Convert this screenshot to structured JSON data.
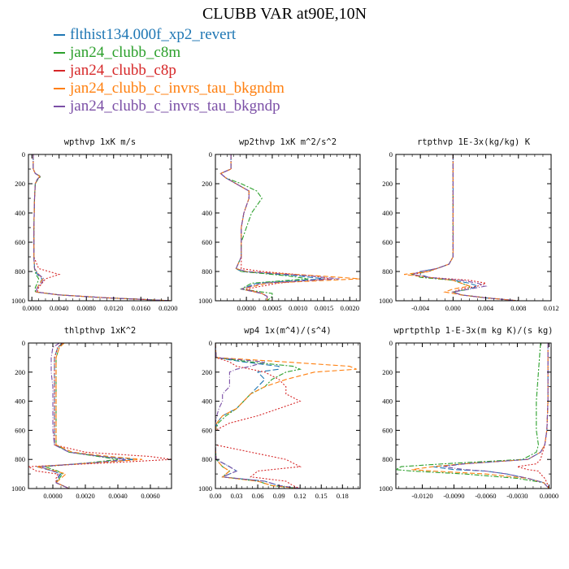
{
  "title": "CLUBB VAR at90E,10N",
  "legend": [
    {
      "name": "flthist134.000f_xp2_revert",
      "color": "#1f77b4"
    },
    {
      "name": "jan24_clubb_c8m",
      "color": "#2ca02c"
    },
    {
      "name": "jan24_clubb_c8p",
      "color": "#d62728"
    },
    {
      "name": "jan24_clubb_c_invrs_tau_bkgndm",
      "color": "#ff7f0e"
    },
    {
      "name": "jan24_clubb_c_invrs_tau_bkgndp",
      "color": "#7b4fa6"
    }
  ],
  "chart_data": [
    {
      "type": "line",
      "title": "wpthvp  1xK m/s",
      "xlim": [
        -0.0005,
        0.0205
      ],
      "ylim": [
        0,
        1000
      ],
      "y_inverted": true,
      "xticks": [
        "0.0000",
        "0.0040",
        "0.0080",
        "0.0120",
        "0.0160",
        "0.0200"
      ],
      "xtick_values": [
        0,
        0.004,
        0.008,
        0.012,
        0.016,
        0.02
      ],
      "yticks": [
        0,
        200,
        400,
        600,
        800,
        1000
      ],
      "y": [
        0,
        100,
        130,
        150,
        170,
        200,
        300,
        500,
        700,
        780,
        820,
        850,
        880,
        910,
        940,
        960,
        980,
        990,
        1000
      ],
      "series": [
        {
          "values": [
            0.0002,
            0.0002,
            0.0005,
            0.0012,
            0.0008,
            0.0005,
            0.0004,
            0.0003,
            0.0003,
            0.0004,
            0.0008,
            0.0015,
            0.0012,
            0.0008,
            0.0006,
            0.004,
            0.011,
            0.016,
            0.0205
          ]
        },
        {
          "values": [
            0.0002,
            0.0002,
            0.0005,
            0.0013,
            0.0009,
            0.0005,
            0.0004,
            0.0003,
            0.0003,
            0.0004,
            0.0006,
            0.001,
            0.0008,
            0.0005,
            0.0005,
            0.004,
            0.011,
            0.016,
            0.0205
          ]
        },
        {
          "values": [
            0.0002,
            0.0002,
            0.0005,
            0.0012,
            0.0008,
            0.0005,
            0.0004,
            0.0003,
            0.0003,
            0.001,
            0.004,
            0.002,
            0.0015,
            0.001,
            0.0008,
            0.004,
            0.011,
            0.016,
            0.0205
          ]
        },
        {
          "values": [
            0.0002,
            0.0002,
            0.0005,
            0.0012,
            0.0008,
            0.0005,
            0.0004,
            0.0003,
            0.0003,
            0.0004,
            0.001,
            0.0016,
            0.0012,
            0.0008,
            0.0006,
            0.004,
            0.011,
            0.016,
            0.0205
          ]
        },
        {
          "values": [
            0.0002,
            0.0002,
            0.0005,
            0.0012,
            0.0008,
            0.0005,
            0.0004,
            0.0003,
            0.0003,
            0.0004,
            0.001,
            0.0018,
            0.0014,
            0.0008,
            0.0006,
            0.004,
            0.011,
            0.016,
            0.0205
          ]
        }
      ]
    },
    {
      "type": "line",
      "title": "wp2thvp  1xK m^2/s^2",
      "xlim": [
        -0.0006,
        0.0022
      ],
      "ylim": [
        0,
        1000
      ],
      "y_inverted": true,
      "xticks": [
        "0.0000",
        "0.0005",
        "0.0010",
        "0.0015",
        "0.0020"
      ],
      "xtick_values": [
        0,
        0.0005,
        0.001,
        0.0015,
        0.002
      ],
      "yticks": [
        0,
        200,
        400,
        600,
        800,
        1000
      ],
      "y": [
        0,
        100,
        130,
        160,
        200,
        250,
        300,
        400,
        500,
        600,
        700,
        780,
        800,
        830,
        850,
        880,
        920,
        950,
        970,
        1000
      ],
      "series": [
        {
          "values": [
            -0.0003,
            -0.0003,
            -0.0005,
            -0.0004,
            -0.0002,
            5e-05,
            5e-05,
            -5e-05,
            -0.0001,
            -0.0001,
            -0.0001,
            -0.0002,
            -0.0001,
            0.001,
            0.0015,
            0.0002,
            -0.0001,
            0.0003,
            0.0004,
            0.0004
          ]
        },
        {
          "values": [
            -0.0003,
            -0.0003,
            -0.0005,
            -0.0004,
            -0.0001,
            0.0002,
            0.0003,
            0.0001,
            0.0,
            -0.0001,
            -0.0001,
            -0.0002,
            -0.0001,
            0.0008,
            0.0012,
            0.0001,
            -0.0001,
            0.0005,
            0.0005,
            0.0004
          ]
        },
        {
          "values": [
            -0.0003,
            -0.0003,
            -0.0005,
            -0.0004,
            -0.0002,
            5e-05,
            5e-05,
            -5e-05,
            -0.0001,
            -0.0001,
            -0.0001,
            -0.0001,
            0.0003,
            0.0013,
            0.0016,
            0.0006,
            0.0,
            0.0003,
            0.0004,
            0.0004
          ]
        },
        {
          "values": [
            -0.0003,
            -0.0003,
            -0.0005,
            -0.0004,
            -0.0002,
            5e-05,
            5e-05,
            -5e-05,
            -0.0001,
            -0.0001,
            -0.0001,
            -0.0002,
            0.0,
            0.0014,
            0.0022,
            0.0004,
            -0.0001,
            0.0003,
            0.0004,
            0.0004
          ]
        },
        {
          "values": [
            -0.0003,
            -0.0003,
            -0.0005,
            -0.0004,
            -0.0002,
            5e-05,
            5e-05,
            -5e-05,
            -0.0001,
            -0.0001,
            -0.0001,
            -0.0002,
            0.0,
            0.0012,
            0.0018,
            0.0003,
            -0.0001,
            0.0003,
            0.0004,
            0.0004
          ]
        }
      ]
    },
    {
      "type": "line",
      "title": "rtpthvp  1E-3x(kg/kg) K",
      "xlim": [
        -0.007,
        0.012
      ],
      "ylim": [
        0,
        1000
      ],
      "y_inverted": true,
      "xticks": [
        "-0.004",
        "0.000",
        "0.004",
        "0.008",
        "0.012"
      ],
      "xtick_values": [
        -0.004,
        0,
        0.004,
        0.008,
        0.012
      ],
      "yticks": [
        0,
        200,
        400,
        600,
        800,
        1000
      ],
      "y": [
        0,
        200,
        400,
        600,
        700,
        750,
        780,
        800,
        820,
        840,
        860,
        880,
        900,
        920,
        940,
        960,
        980,
        1000
      ],
      "series": [
        {
          "values": [
            0,
            0,
            0,
            0,
            0,
            -0.0005,
            -0.002,
            -0.004,
            -0.004,
            -0.003,
            0.0,
            0.002,
            0.003,
            0.002,
            0.0,
            0.001,
            0.004,
            0.008
          ]
        },
        {
          "values": [
            0,
            0,
            0,
            0,
            0,
            -0.0005,
            -0.002,
            -0.003,
            -0.005,
            -0.004,
            0.0,
            0.001,
            0.002,
            0.002,
            0.0,
            0.001,
            0.004,
            0.008
          ]
        },
        {
          "values": [
            0,
            0,
            0,
            0,
            0,
            -0.0005,
            -0.002,
            -0.003,
            -0.005,
            -0.003,
            0.002,
            0.004,
            0.003,
            0.001,
            0.0,
            0.001,
            0.004,
            0.008
          ]
        },
        {
          "values": [
            0,
            0,
            0,
            0,
            0,
            -0.0005,
            -0.002,
            -0.003,
            -0.006,
            -0.003,
            0.0,
            0.001,
            0.002,
            0.0,
            -0.001,
            0.001,
            0.004,
            0.008
          ]
        },
        {
          "values": [
            0,
            0,
            0,
            0,
            0,
            -0.0005,
            -0.002,
            -0.004,
            -0.005,
            -0.003,
            0.001,
            0.003,
            0.004,
            0.002,
            0.0,
            0.001,
            0.004,
            0.008
          ]
        }
      ]
    },
    {
      "type": "line",
      "title": "thlpthvp  1xK^2",
      "xlim": [
        -0.0015,
        0.0073
      ],
      "ylim": [
        0,
        1000
      ],
      "y_inverted": true,
      "xticks": [
        "0.0000",
        "0.0020",
        "0.0040",
        "0.0060"
      ],
      "xtick_values": [
        0,
        0.002,
        0.004,
        0.006
      ],
      "yticks": [
        0,
        200,
        400,
        600,
        800,
        1000
      ],
      "y": [
        0,
        30,
        100,
        200,
        300,
        400,
        500,
        600,
        700,
        750,
        780,
        800,
        820,
        850,
        880,
        900,
        930,
        960,
        1000
      ],
      "series": [
        {
          "values": [
            0.0006,
            0.0003,
            0.0001,
            0.0001,
            0.0001,
            0.0001,
            0.0001,
            0.0001,
            0.0001,
            0.001,
            0.003,
            0.005,
            0.003,
            -0.001,
            0.0,
            0.0005,
            0.0003,
            0.0002,
            0.001
          ]
        },
        {
          "values": [
            0.0007,
            0.0004,
            0.0002,
            0.0002,
            0.0002,
            0.0002,
            0.0002,
            0.0002,
            0.0002,
            0.001,
            0.0028,
            0.004,
            0.0025,
            -0.0005,
            0.0003,
            0.0006,
            0.0004,
            0.0002,
            0.001
          ]
        },
        {
          "values": [
            0.0006,
            0.0003,
            0.0001,
            0.0001,
            0.0001,
            0.0001,
            0.0001,
            0.0001,
            0.0001,
            0.002,
            0.006,
            0.0073,
            0.004,
            -0.0015,
            -0.001,
            0.0003,
            0.0002,
            0.0002,
            0.001
          ]
        },
        {
          "values": [
            0.0007,
            0.0004,
            0.0002,
            0.0002,
            0.0002,
            0.0002,
            0.0002,
            0.0002,
            0.0002,
            0.0012,
            0.0035,
            0.0055,
            0.003,
            -0.001,
            0.0002,
            0.0008,
            0.0005,
            0.0002,
            0.001
          ]
        },
        {
          "values": [
            0.0004,
            0.0,
            -0.0001,
            -0.0001,
            0.0,
            0.0,
            0.0,
            0.0,
            0.0001,
            0.001,
            0.003,
            0.0045,
            0.0028,
            -0.0008,
            0.0,
            0.0004,
            0.0003,
            0.0002,
            0.001
          ]
        }
      ]
    },
    {
      "type": "line",
      "title": "wp4  1x(m^4)/(s^4)",
      "xlim": [
        0.0,
        0.205
      ],
      "ylim": [
        0,
        1000
      ],
      "y_inverted": true,
      "xticks": [
        "0.00",
        "0.03",
        "0.06",
        "0.09",
        "0.12",
        "0.15",
        "0.18"
      ],
      "xtick_values": [
        0,
        0.03,
        0.06,
        0.09,
        0.12,
        0.15,
        0.18
      ],
      "yticks": [
        0,
        200,
        400,
        600,
        800,
        1000
      ],
      "y": [
        0,
        100,
        130,
        160,
        180,
        200,
        250,
        300,
        350,
        400,
        450,
        500,
        550,
        600,
        700,
        800,
        850,
        880,
        920,
        950,
        980,
        1000
      ],
      "series": [
        {
          "values": [
            0.0,
            0.001,
            0.04,
            0.09,
            0.09,
            0.06,
            0.07,
            0.06,
            0.05,
            0.04,
            0.03,
            0.01,
            0.002,
            0.0,
            0.0,
            0.001,
            0.02,
            0.03,
            0.01,
            0.07,
            0.09,
            0.12
          ]
        },
        {
          "values": [
            0.0,
            0.001,
            0.05,
            0.11,
            0.12,
            0.1,
            0.08,
            0.07,
            0.05,
            0.04,
            0.03,
            0.015,
            0.004,
            0.0,
            0.0,
            0.001,
            0.01,
            0.02,
            0.01,
            0.06,
            0.08,
            0.12
          ]
        },
        {
          "values": [
            0.0,
            0.001,
            0.02,
            0.03,
            0.05,
            0.07,
            0.09,
            0.1,
            0.1,
            0.12,
            0.09,
            0.06,
            0.02,
            0.0,
            0.0,
            0.1,
            0.12,
            0.06,
            0.05,
            0.1,
            0.11,
            0.12
          ]
        },
        {
          "values": [
            0.0,
            0.001,
            0.1,
            0.19,
            0.2,
            0.14,
            0.1,
            0.07,
            0.05,
            0.04,
            0.03,
            0.01,
            0.002,
            0.0,
            0.0,
            0.001,
            0.01,
            0.02,
            0.01,
            0.06,
            0.08,
            0.12
          ]
        },
        {
          "values": [
            0.0,
            0.001,
            0.07,
            0.05,
            0.03,
            0.02,
            0.02,
            0.02,
            0.01,
            0.01,
            0.005,
            0.002,
            0.0,
            0.0,
            0.0,
            0.001,
            0.02,
            0.03,
            0.01,
            0.07,
            0.09,
            0.12
          ]
        }
      ]
    },
    {
      "type": "line",
      "title": "wprtpthlp  1-E-3x(m kg K)/(s kg)",
      "xlim": [
        -0.0145,
        0.0002
      ],
      "ylim": [
        0,
        1000
      ],
      "y_inverted": true,
      "xticks": [
        "-0.0120",
        "-0.0090",
        "-0.0060",
        "-0.0030",
        "0.0000"
      ],
      "xtick_values": [
        -0.012,
        -0.009,
        -0.006,
        -0.003,
        0
      ],
      "yticks": [
        0,
        200,
        400,
        600,
        800,
        1000
      ],
      "y": [
        0,
        200,
        400,
        600,
        700,
        750,
        800,
        830,
        850,
        870,
        880,
        900,
        930,
        960,
        1000
      ],
      "series": [
        {
          "values": [
            -0.0001,
            -0.0001,
            -0.0001,
            -0.0002,
            -0.0004,
            -0.0008,
            -0.002,
            -0.008,
            -0.011,
            -0.009,
            -0.006,
            -0.004,
            -0.002,
            -0.0005,
            0.0
          ]
        },
        {
          "values": [
            -0.0008,
            -0.001,
            -0.0012,
            -0.0012,
            -0.001,
            -0.0012,
            -0.0025,
            -0.01,
            -0.014,
            -0.0145,
            -0.013,
            -0.008,
            -0.003,
            -0.0005,
            0.0
          ]
        },
        {
          "values": [
            -0.0001,
            -0.0001,
            -0.0001,
            -0.0002,
            -0.0004,
            -0.0006,
            -0.0008,
            -0.0012,
            -0.003,
            -0.002,
            -0.001,
            -0.0008,
            -0.0004,
            -0.0002,
            0.0
          ]
        },
        {
          "values": [
            -0.0001,
            -0.0001,
            -0.0001,
            -0.0002,
            -0.0004,
            -0.0008,
            -0.002,
            -0.008,
            -0.011,
            -0.013,
            -0.011,
            -0.006,
            -0.002,
            -0.0005,
            0.0
          ]
        },
        {
          "values": [
            -0.0001,
            -0.0001,
            -0.0001,
            -0.0002,
            -0.0004,
            -0.0008,
            -0.002,
            -0.008,
            -0.01,
            -0.008,
            -0.006,
            -0.004,
            -0.002,
            -0.0005,
            0.0
          ]
        }
      ]
    }
  ]
}
